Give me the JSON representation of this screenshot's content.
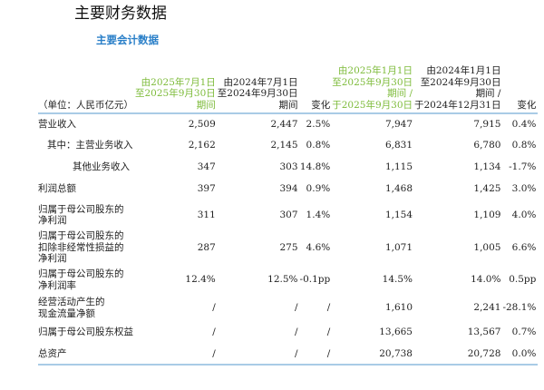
{
  "title": "主要财务数据",
  "subtitle": "主要会计数据",
  "headers": {
    "unit": "（单位：人民币亿元）",
    "c1": [
      "由2025年7月1日",
      "至2025年9月30日",
      "期间"
    ],
    "c2": [
      "由2024年7月1日",
      "至2024年9月30日",
      "期间"
    ],
    "c3": "变化",
    "c4": [
      "由2025年1月1日",
      "至2025年9月30日",
      "期间 /",
      "于2025年9月30日"
    ],
    "c5": [
      "由2024年1月1日",
      "至2024年9月30日",
      "期间 /",
      "于2024年12月31日"
    ],
    "c6": "变化"
  },
  "highlight_color": "#7dbb3a",
  "rows": [
    {
      "label": [
        "营业收入"
      ],
      "v": [
        "2,509",
        "2,447",
        "2.5%",
        "7,947",
        "7,915",
        "0.4%"
      ]
    },
    {
      "label": [
        "其中：主营业务收入"
      ],
      "v": [
        "2,162",
        "2,145",
        "0.8%",
        "6,831",
        "6,780",
        "0.8%"
      ]
    },
    {
      "label": [
        "其他业务收入"
      ],
      "v": [
        "347",
        "303",
        "14.8%",
        "1,115",
        "1,134",
        "-1.7%"
      ]
    },
    {
      "label": [
        "利润总额"
      ],
      "v": [
        "397",
        "394",
        "0.9%",
        "1,468",
        "1,425",
        "3.0%"
      ]
    },
    {
      "label": [
        "归属于母公司股东的",
        "净利润"
      ],
      "v": [
        "311",
        "307",
        "1.4%",
        "1,154",
        "1,109",
        "4.0%"
      ]
    },
    {
      "label": [
        "归属于母公司股东的",
        "扣除非经常性损益的",
        "净利润"
      ],
      "v": [
        "287",
        "275",
        "4.6%",
        "1,071",
        "1,005",
        "6.6%"
      ]
    },
    {
      "label": [
        "归属于母公司股东的",
        "净利润率"
      ],
      "v": [
        "12.4%",
        "12.5%",
        "-0.1pp",
        "14.5%",
        "14.0%",
        "0.5pp"
      ]
    },
    {
      "label": [
        "经营活动产生的",
        "现金流量净额"
      ],
      "v": [
        "/",
        "/",
        "/",
        "1,610",
        "2,241",
        "-28.1%"
      ]
    },
    {
      "label": [
        "归属于母公司股东权益"
      ],
      "v": [
        "/",
        "/",
        "/",
        "13,665",
        "13,567",
        "0.7%"
      ]
    },
    {
      "label": [
        "总资产"
      ],
      "v": [
        "/",
        "/",
        "/",
        "20,738",
        "20,728",
        "0.0%"
      ]
    }
  ]
}
